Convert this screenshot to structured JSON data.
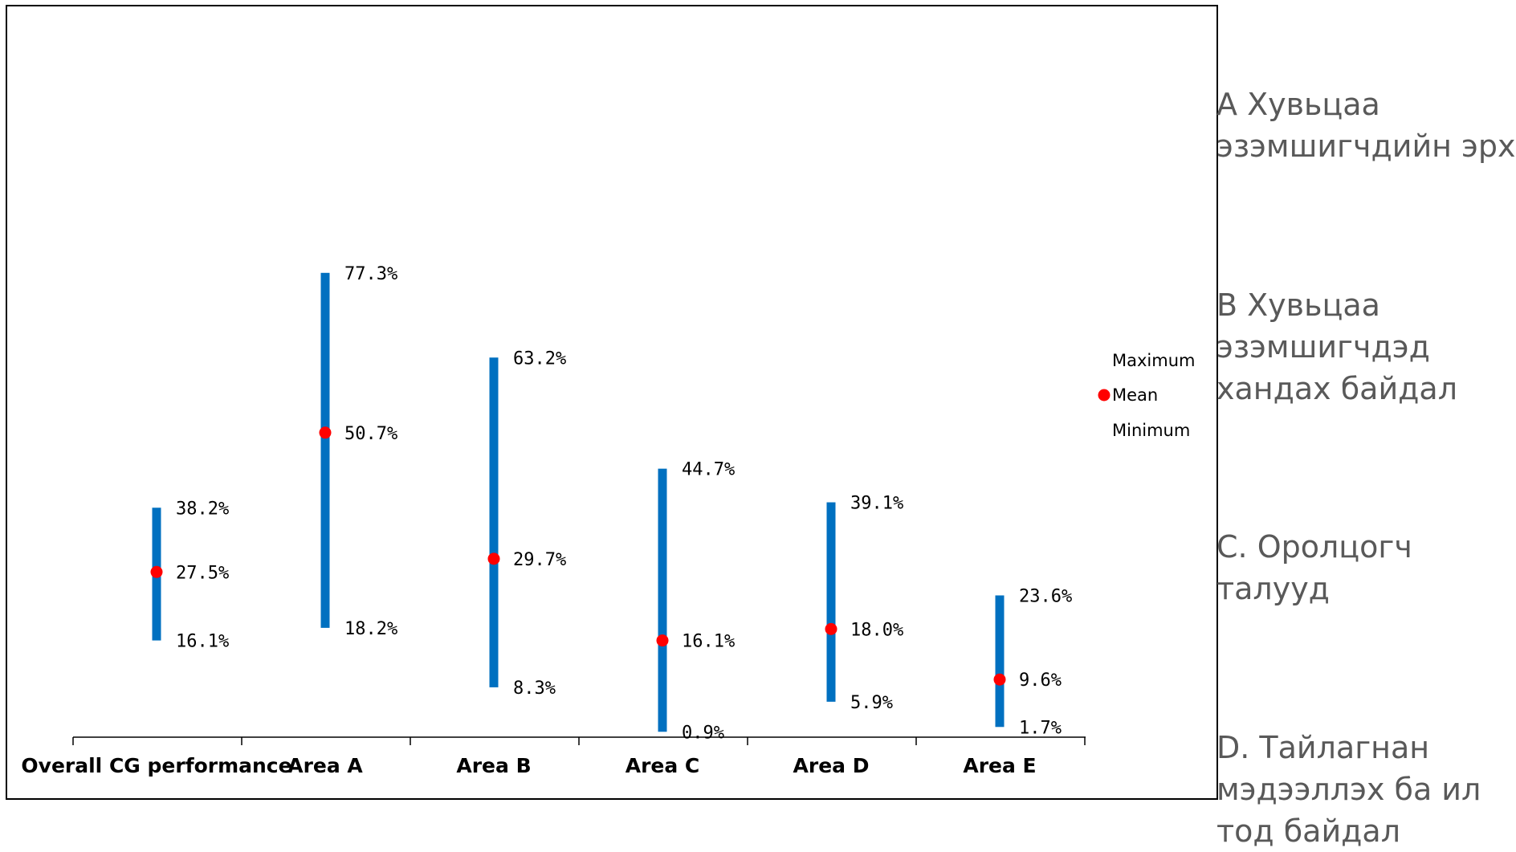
{
  "chart_data": {
    "type": "range",
    "categories": [
      "Overall CG performance",
      "Area A",
      "Area B",
      "Area C",
      "Area D",
      "Area E"
    ],
    "series": [
      {
        "name": "Maximum",
        "values": [
          38.2,
          77.3,
          63.2,
          44.7,
          39.1,
          23.6
        ],
        "labels": [
          "38.2%",
          "77.3%",
          "63.2%",
          "44.7%",
          "39.1%",
          "23.6%"
        ]
      },
      {
        "name": "Mean",
        "values": [
          27.5,
          50.7,
          29.7,
          16.1,
          18.0,
          9.6
        ],
        "labels": [
          "27.5%",
          "50.7%",
          "29.7%",
          "16.1%",
          "18.0%",
          "9.6%"
        ]
      },
      {
        "name": "Minimum",
        "values": [
          16.1,
          18.2,
          8.3,
          0.9,
          5.9,
          1.7
        ],
        "labels": [
          "16.1%",
          "18.2%",
          "8.3%",
          "0.9%",
          "5.9%",
          "1.7%"
        ]
      }
    ],
    "ylim": [
      0,
      100
    ],
    "grid": false,
    "legend_position": "right",
    "colors": {
      "bar": "#0070C0",
      "mean": "#FF0000",
      "axis": "#000000"
    }
  },
  "side_notes": [
    {
      "lines": [
        "A Хувьцаа",
        "эзэмшигчдийн эрх"
      ]
    },
    {
      "lines": [
        "B Хувьцаа",
        "эзэмшигчдэд",
        "хандах байдал"
      ]
    },
    {
      "lines": [
        "C. Оролцогч",
        "талууд"
      ]
    },
    {
      "lines": [
        "D. Тайлагнан",
        "мэдээллэх ба ил",
        "тод байдал"
      ]
    }
  ]
}
